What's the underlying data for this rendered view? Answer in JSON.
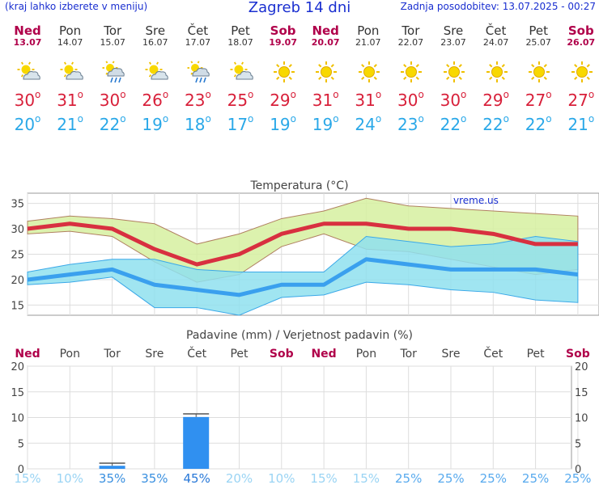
{
  "header": {
    "left_note": "(kraj lahko izberete v meniju)",
    "title": "Zagreb 14 dni",
    "updated": "Zadnja posodobitev: 13.07.2025 - 00:27"
  },
  "days": [
    {
      "name": "Ned",
      "date": "13.07",
      "weekend": true,
      "icon": "sun-cloud-icon",
      "tmax": "30",
      "tmin": "20"
    },
    {
      "name": "Pon",
      "date": "14.07",
      "weekend": false,
      "icon": "sun-cloud-icon",
      "tmax": "31",
      "tmin": "21"
    },
    {
      "name": "Tor",
      "date": "15.07",
      "weekend": false,
      "icon": "sun-cloud-rain-icon",
      "tmax": "30",
      "tmin": "22"
    },
    {
      "name": "Sre",
      "date": "16.07",
      "weekend": false,
      "icon": "sun-cloud-icon",
      "tmax": "26",
      "tmin": "19"
    },
    {
      "name": "Čet",
      "date": "17.07",
      "weekend": false,
      "icon": "sun-cloud-rain-icon",
      "tmax": "23",
      "tmin": "18"
    },
    {
      "name": "Pet",
      "date": "18.07",
      "weekend": false,
      "icon": "sun-cloud-icon",
      "tmax": "25",
      "tmin": "17"
    },
    {
      "name": "Sob",
      "date": "19.07",
      "weekend": true,
      "icon": "sun-icon",
      "tmax": "29",
      "tmin": "19"
    },
    {
      "name": "Ned",
      "date": "20.07",
      "weekend": true,
      "icon": "sun-icon",
      "tmax": "31",
      "tmin": "19"
    },
    {
      "name": "Pon",
      "date": "21.07",
      "weekend": false,
      "icon": "sun-icon",
      "tmax": "31",
      "tmin": "24"
    },
    {
      "name": "Tor",
      "date": "22.07",
      "weekend": false,
      "icon": "sun-icon",
      "tmax": "30",
      "tmin": "23"
    },
    {
      "name": "Sre",
      "date": "23.07",
      "weekend": false,
      "icon": "sun-icon",
      "tmax": "30",
      "tmin": "22"
    },
    {
      "name": "Čet",
      "date": "24.07",
      "weekend": false,
      "icon": "sun-icon",
      "tmax": "29",
      "tmin": "22"
    },
    {
      "name": "Pet",
      "date": "25.07",
      "weekend": false,
      "icon": "sun-icon",
      "tmax": "27",
      "tmin": "22"
    },
    {
      "name": "Sob",
      "date": "26.07",
      "weekend": true,
      "icon": "sun-icon",
      "tmax": "27",
      "tmin": "21"
    }
  ],
  "chart_data": [
    {
      "type": "area",
      "title": "Temperatura (°C)",
      "watermark": "vreme.us",
      "ylim": [
        13,
        37
      ],
      "yticks": [
        15,
        20,
        25,
        30,
        35
      ],
      "grid": true,
      "x": [
        0,
        1,
        2,
        3,
        4,
        5,
        6,
        7,
        8,
        9,
        10,
        11,
        12,
        13
      ],
      "series": [
        {
          "role": "max",
          "color": "#e03040",
          "values": [
            30,
            31,
            30,
            26,
            23,
            25,
            29,
            31,
            31,
            30,
            30,
            29,
            27,
            27
          ]
        },
        {
          "role": "max_band_high",
          "color": "#d8f0a0",
          "values": [
            31.5,
            32.5,
            32,
            31,
            27,
            29,
            32,
            33.5,
            36,
            34.5,
            34,
            33.5,
            33,
            32.5
          ]
        },
        {
          "role": "max_band_low",
          "color": "#d8f0a0",
          "values": [
            29,
            29.5,
            28.5,
            23.5,
            19.5,
            21,
            26.5,
            29,
            26,
            25.5,
            24,
            22.5,
            21,
            22
          ]
        },
        {
          "role": "min",
          "color": "#40a8f0",
          "values": [
            20,
            21,
            22,
            19,
            18,
            17,
            19,
            19,
            24,
            23,
            22,
            22,
            22,
            21
          ]
        },
        {
          "role": "min_band_high",
          "color": "#90e0f0",
          "values": [
            21.5,
            23,
            24,
            24,
            22,
            21.5,
            21.5,
            21.5,
            28.5,
            27.5,
            26.5,
            27,
            28.5,
            27.5
          ]
        },
        {
          "role": "min_band_low",
          "color": "#90e0f0",
          "values": [
            19,
            19.5,
            20.5,
            14.5,
            14.5,
            13,
            16.5,
            17,
            19.5,
            19,
            18,
            17.5,
            16,
            15.5
          ]
        }
      ]
    },
    {
      "type": "bar",
      "title": "Padavine (mm) / Verjetnost padavin (%)",
      "ylim": [
        0,
        20
      ],
      "yticks": [
        0,
        5,
        10,
        15,
        20
      ],
      "categories": [
        "Ned",
        "Pon",
        "Tor",
        "Sre",
        "Čet",
        "Pet",
        "Sob",
        "Ned",
        "Pon",
        "Tor",
        "Sre",
        "Čet",
        "Pet",
        "Sob"
      ],
      "values": [
        0,
        0,
        0.6,
        0,
        10.1,
        0,
        0,
        0,
        0,
        0,
        0,
        0,
        0,
        0
      ],
      "error_high": [
        0,
        0,
        1.1,
        0,
        10.7,
        0,
        0,
        0,
        0,
        0,
        0,
        0,
        0,
        0
      ],
      "probabilities": [
        "15%",
        "10%",
        "35%",
        "35%",
        "45%",
        "20%",
        "10%",
        "15%",
        "15%",
        "25%",
        "25%",
        "25%",
        "25%",
        "25%"
      ],
      "prob_values": [
        15,
        10,
        35,
        35,
        45,
        20,
        10,
        15,
        15,
        25,
        25,
        25,
        25,
        25
      ],
      "bar_color": "#3090f0"
    }
  ],
  "colors": {
    "header_blue": "#1a2fd0",
    "weekend": "#b0004a",
    "tmax": "#d8203a",
    "tmin": "#2aa8e8"
  }
}
